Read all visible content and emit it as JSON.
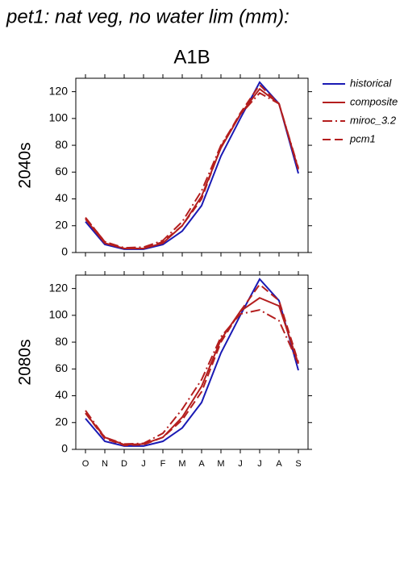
{
  "chart_data": [
    {
      "type": "line",
      "title": "pet1: nat veg, no water lim (mm):",
      "subtitle": "A1B",
      "ylabel": "2040s",
      "ylim": [
        0,
        130
      ],
      "yticks": [
        0,
        20,
        40,
        60,
        80,
        100,
        120
      ],
      "series": [
        {
          "name": "historical",
          "color": "#1a1ab4",
          "dash": "solid",
          "values": [
            23,
            6,
            2.5,
            2.5,
            6,
            16,
            35,
            72,
            100,
            127,
            111,
            59
          ]
        },
        {
          "name": "composite",
          "color": "#b41e1e",
          "dash": "solid",
          "values": [
            25,
            7,
            3,
            3,
            7,
            20,
            42,
            78,
            103,
            122,
            111,
            62
          ]
        },
        {
          "name": "miroc_3.2",
          "color": "#b41e1e",
          "dash": "dashdot",
          "values": [
            26,
            8,
            3.5,
            4,
            9,
            23,
            46,
            80,
            103,
            119,
            111,
            63
          ]
        },
        {
          "name": "pcm1",
          "color": "#b41e1e",
          "dash": "dash",
          "values": [
            26,
            8,
            3,
            3,
            8,
            20,
            40,
            79,
            104,
            125,
            111,
            62
          ]
        }
      ]
    },
    {
      "type": "line",
      "ylabel": "2080s",
      "categories": [
        "O",
        "N",
        "D",
        "J",
        "F",
        "M",
        "A",
        "M",
        "J",
        "J",
        "A",
        "S"
      ],
      "ylim": [
        0,
        130
      ],
      "yticks": [
        0,
        20,
        40,
        60,
        80,
        100,
        120
      ],
      "series": [
        {
          "color": "#1a1ab4",
          "dash": "solid",
          "values": [
            23,
            6,
            2.5,
            2.5,
            6,
            16,
            35,
            72,
            100,
            127,
            111,
            59
          ]
        },
        {
          "color": "#b41e1e",
          "dash": "solid",
          "values": [
            27,
            9,
            3.5,
            4,
            9,
            24,
            47,
            82,
            103,
            113,
            107,
            64
          ]
        },
        {
          "color": "#b41e1e",
          "dash": "dashdot",
          "values": [
            29,
            9,
            4,
            4.5,
            12,
            30,
            52,
            84,
            101,
            104,
            96,
            64
          ]
        },
        {
          "color": "#b41e1e",
          "dash": "dash",
          "values": [
            27,
            8,
            3,
            3.5,
            9,
            22,
            43,
            80,
            103,
            123,
            111,
            65
          ]
        }
      ]
    }
  ]
}
